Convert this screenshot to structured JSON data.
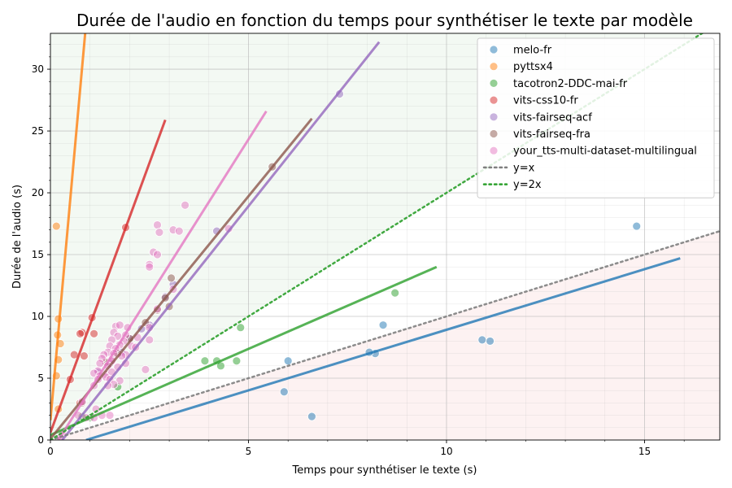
{
  "chart_data": {
    "type": "scatter",
    "title": "Durée de l'audio en fonction du temps pour synthétiser le texte par modèle",
    "xlabel": "Temps pour synthétiser le texte (s)",
    "ylabel": "Durée de l'audio (s)",
    "xlim": [
      0,
      16.9
    ],
    "ylim": [
      0,
      32.9
    ],
    "xticks": [
      0,
      5,
      10,
      15
    ],
    "yticks": [
      0,
      5,
      10,
      15,
      20,
      25,
      30
    ],
    "grid": true,
    "legend_position": "top-right",
    "regions": [
      {
        "name": "above y=2x",
        "color": "#2ca02c"
      },
      {
        "name": "below y=x",
        "color": "#d62728"
      }
    ],
    "reference_lines": [
      {
        "name": "y=x",
        "slope": 1,
        "color": "#7f7f7f",
        "style": "dotted"
      },
      {
        "name": "y=2x",
        "slope": 2,
        "color": "#2ca02c",
        "style": "dotted"
      }
    ],
    "series": [
      {
        "name": "melo-fr",
        "color": "#1f77b4",
        "points": [
          [
            14.8,
            17.3
          ],
          [
            11.1,
            8.0
          ],
          [
            10.9,
            8.1
          ],
          [
            8.4,
            9.3
          ],
          [
            8.2,
            7.0
          ],
          [
            8.05,
            7.1
          ],
          [
            6.0,
            6.4
          ],
          [
            5.9,
            3.9
          ],
          [
            6.6,
            1.9
          ]
        ],
        "fit": [
          [
            0.9,
            0
          ],
          [
            15.9,
            14.7
          ]
        ]
      },
      {
        "name": "pyttsx4",
        "color": "#ff7f0e",
        "points": [
          [
            0.15,
            17.3
          ],
          [
            0.2,
            9.8
          ],
          [
            0.18,
            8.5
          ],
          [
            0.25,
            7.8
          ],
          [
            0.2,
            6.5
          ],
          [
            0.15,
            5.2
          ],
          [
            0.2,
            2.5
          ]
        ],
        "fit": [
          [
            0,
            1.6
          ],
          [
            0.88,
            33.0
          ]
        ]
      },
      {
        "name": "tacotron2-DDC-mai-fr",
        "color": "#2ca02c",
        "points": [
          [
            8.7,
            11.9
          ],
          [
            4.8,
            9.1
          ],
          [
            3.9,
            6.4
          ],
          [
            4.2,
            6.4
          ],
          [
            4.7,
            6.4
          ],
          [
            4.3,
            6.0
          ],
          [
            1.7,
            4.3
          ],
          [
            0.8,
            1.9
          ],
          [
            1.0,
            1.8
          ]
        ],
        "fit": [
          [
            0,
            0.4
          ],
          [
            9.75,
            14.0
          ]
        ]
      },
      {
        "name": "vits-css10-fr",
        "color": "#d62728",
        "points": [
          [
            1.9,
            17.2
          ],
          [
            1.05,
            9.9
          ],
          [
            0.8,
            8.7
          ],
          [
            1.1,
            8.6
          ],
          [
            0.75,
            8.6
          ],
          [
            0.6,
            6.9
          ],
          [
            0.85,
            6.8
          ],
          [
            0.5,
            4.9
          ],
          [
            0.75,
            3.0
          ]
        ],
        "fit": [
          [
            0,
            0.6
          ],
          [
            2.9,
            25.9
          ]
        ]
      },
      {
        "name": "vits-fairseq-acf",
        "color": "#9467bd",
        "points": [
          [
            7.3,
            28.0
          ],
          [
            4.2,
            16.9
          ],
          [
            3.1,
            12.6
          ],
          [
            2.9,
            11.6
          ],
          [
            2.5,
            9.3
          ],
          [
            2.3,
            9.0
          ],
          [
            2.0,
            8.2
          ],
          [
            1.8,
            7.1
          ],
          [
            1.5,
            6.2
          ],
          [
            1.2,
            5.5
          ]
        ],
        "fit": [
          [
            0.3,
            0
          ],
          [
            8.3,
            32.2
          ]
        ]
      },
      {
        "name": "vits-fairseq-fra",
        "color": "#8c564b",
        "points": [
          [
            5.6,
            22.1
          ],
          [
            3.05,
            13.1
          ],
          [
            2.7,
            10.5
          ],
          [
            3.0,
            10.8
          ],
          [
            2.9,
            11.5
          ],
          [
            2.4,
            9.5
          ],
          [
            2.0,
            8.2
          ],
          [
            1.7,
            7.0
          ],
          [
            1.4,
            6.3
          ],
          [
            0.8,
            3.0
          ]
        ],
        "fit": [
          [
            0,
            0.1
          ],
          [
            6.6,
            26.0
          ]
        ]
      },
      {
        "name": "your_tts-multi-dataset-multilingual",
        "color": "#e377c2",
        "points": [
          [
            3.4,
            19.0
          ],
          [
            2.7,
            17.4
          ],
          [
            2.75,
            16.8
          ],
          [
            3.1,
            17.0
          ],
          [
            3.25,
            16.9
          ],
          [
            4.5,
            17.1
          ],
          [
            2.6,
            15.2
          ],
          [
            2.7,
            15.0
          ],
          [
            2.5,
            14.2
          ],
          [
            2.5,
            14.0
          ],
          [
            3.1,
            12.2
          ],
          [
            2.7,
            10.6
          ],
          [
            1.65,
            9.2
          ],
          [
            1.75,
            9.3
          ],
          [
            1.95,
            9.1
          ],
          [
            1.9,
            8.5
          ],
          [
            2.5,
            9.1
          ],
          [
            2.5,
            8.1
          ],
          [
            2.2,
            8.3
          ],
          [
            1.6,
            8.7
          ],
          [
            1.7,
            8.4
          ],
          [
            1.85,
            8.0
          ],
          [
            1.55,
            8.1
          ],
          [
            1.75,
            7.7
          ],
          [
            2.05,
            7.6
          ],
          [
            2.15,
            7.5
          ],
          [
            1.5,
            7.6
          ],
          [
            1.65,
            7.4
          ],
          [
            1.45,
            7.1
          ],
          [
            1.35,
            6.9
          ],
          [
            1.6,
            7.0
          ],
          [
            1.9,
            6.9
          ],
          [
            1.8,
            6.8
          ],
          [
            1.3,
            6.6
          ],
          [
            1.55,
            6.5
          ],
          [
            1.25,
            6.2
          ],
          [
            1.55,
            6.4
          ],
          [
            1.9,
            6.2
          ],
          [
            1.45,
            6.0
          ],
          [
            1.7,
            5.9
          ],
          [
            2.4,
            5.7
          ],
          [
            1.2,
            5.6
          ],
          [
            1.4,
            5.3
          ],
          [
            1.55,
            5.5
          ],
          [
            1.1,
            5.4
          ],
          [
            1.25,
            5.2
          ],
          [
            1.4,
            5.1
          ],
          [
            1.75,
            4.8
          ],
          [
            1.5,
            4.9
          ],
          [
            1.2,
            4.9
          ],
          [
            1.1,
            4.4
          ],
          [
            1.6,
            4.5
          ],
          [
            1.45,
            4.4
          ],
          [
            1.15,
            2.5
          ],
          [
            1.3,
            2.0
          ],
          [
            1.5,
            2.0
          ],
          [
            0.7,
            2.0
          ],
          [
            0.9,
            1.8
          ],
          [
            1.1,
            1.8
          ],
          [
            0.3,
            0.5
          ],
          [
            0.25,
            0.2
          ],
          [
            0.8,
            3.1
          ]
        ],
        "fit": [
          [
            0.2,
            0
          ],
          [
            5.45,
            26.6
          ]
        ]
      }
    ]
  }
}
